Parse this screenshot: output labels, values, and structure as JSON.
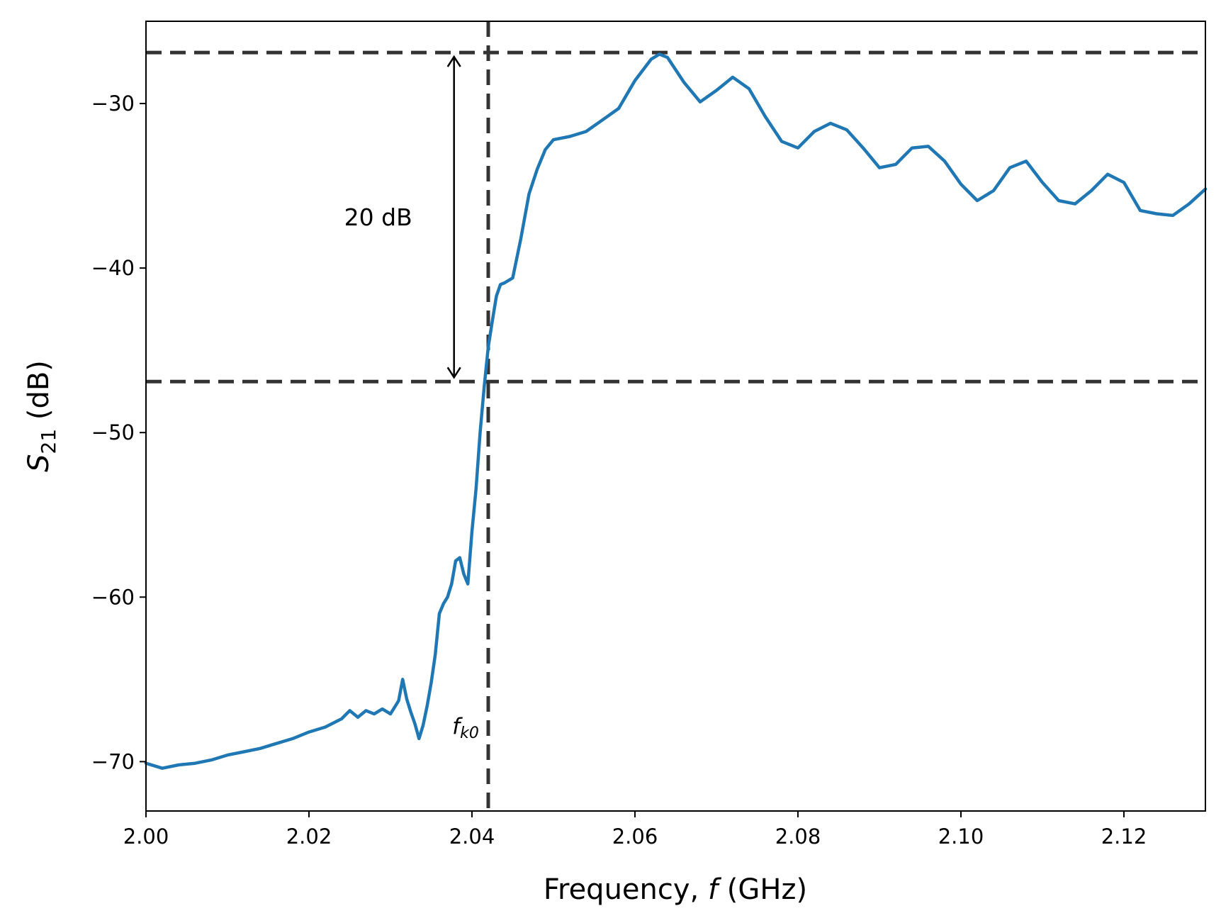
{
  "chart_data": {
    "type": "line",
    "xlabel_prefix": "Frequency, ",
    "xlabel_var": "f",
    "xlabel_suffix": " (GHz)",
    "ylabel_var": "S",
    "ylabel_sub": "21",
    "ylabel_suffix": " (dB)",
    "xlim": [
      2.0,
      2.13
    ],
    "ylim": [
      -73,
      -25
    ],
    "xticks": [
      2.0,
      2.02,
      2.04,
      2.06,
      2.08,
      2.1,
      2.12
    ],
    "xtick_labels": [
      "2.00",
      "2.02",
      "2.04",
      "2.06",
      "2.08",
      "2.10",
      "2.12"
    ],
    "yticks": [
      -70,
      -60,
      -50,
      -40,
      -30
    ],
    "ytick_labels": [
      "−70",
      "−60",
      "−50",
      "−40",
      "−30"
    ],
    "grid": false,
    "colors": {
      "series": "#1f77b4",
      "reference": "#333333"
    },
    "reference_lines": {
      "h_upper": -26.9,
      "h_lower": -46.9,
      "v_fk0": 2.042
    },
    "annotations": {
      "span_label": "20 dB",
      "fk0_main": "f",
      "fk0_sub": "k0",
      "arrow_x": 2.0378
    },
    "series": [
      {
        "x": [
          2.0,
          2.002,
          2.004,
          2.006,
          2.008,
          2.01,
          2.012,
          2.014,
          2.016,
          2.018,
          2.02,
          2.022,
          2.024,
          2.025,
          2.026,
          2.027,
          2.028,
          2.029,
          2.03,
          2.031,
          2.0315,
          2.032,
          2.0325,
          2.033,
          2.0335,
          2.034,
          2.0345,
          2.035,
          2.0355,
          2.036,
          2.0365,
          2.037,
          2.0375,
          2.038,
          2.0385,
          2.039,
          2.0395,
          2.04,
          2.0405,
          2.041,
          2.0415,
          2.042,
          2.0425,
          2.043,
          2.0435,
          2.044,
          2.045,
          2.046,
          2.047,
          2.048,
          2.049,
          2.05,
          2.052,
          2.054,
          2.056,
          2.058,
          2.06,
          2.062,
          2.063,
          2.064,
          2.066,
          2.068,
          2.07,
          2.072,
          2.074,
          2.076,
          2.078,
          2.08,
          2.082,
          2.084,
          2.086,
          2.088,
          2.09,
          2.092,
          2.094,
          2.096,
          2.098,
          2.1,
          2.102,
          2.104,
          2.106,
          2.108,
          2.11,
          2.112,
          2.114,
          2.116,
          2.118,
          2.12,
          2.122,
          2.124,
          2.126,
          2.128,
          2.13
        ],
        "y": [
          -70.1,
          -70.4,
          -70.2,
          -70.1,
          -69.9,
          -69.6,
          -69.4,
          -69.2,
          -68.9,
          -68.6,
          -68.2,
          -67.9,
          -67.4,
          -66.9,
          -67.3,
          -66.9,
          -67.1,
          -66.8,
          -67.1,
          -66.3,
          -65.0,
          -66.2,
          -67.0,
          -67.7,
          -68.6,
          -67.8,
          -66.6,
          -65.2,
          -63.5,
          -61.0,
          -60.4,
          -60.0,
          -59.2,
          -57.8,
          -57.6,
          -58.6,
          -59.2,
          -56.0,
          -53.4,
          -50.0,
          -47.2,
          -44.8,
          -43.2,
          -41.7,
          -41.0,
          -40.9,
          -40.6,
          -38.2,
          -35.5,
          -34.0,
          -32.8,
          -32.2,
          -32.0,
          -31.7,
          -31.0,
          -30.3,
          -28.6,
          -27.3,
          -27.0,
          -27.2,
          -28.7,
          -29.9,
          -29.2,
          -28.4,
          -29.1,
          -30.8,
          -32.3,
          -32.7,
          -31.7,
          -31.2,
          -31.6,
          -32.7,
          -33.9,
          -33.7,
          -32.7,
          -32.6,
          -33.5,
          -34.9,
          -35.9,
          -35.3,
          -33.9,
          -33.5,
          -34.8,
          -35.9,
          -36.1,
          -35.3,
          -34.3,
          -34.8,
          -36.5,
          -36.7,
          -36.8,
          -36.1,
          -35.2
        ]
      }
    ]
  }
}
